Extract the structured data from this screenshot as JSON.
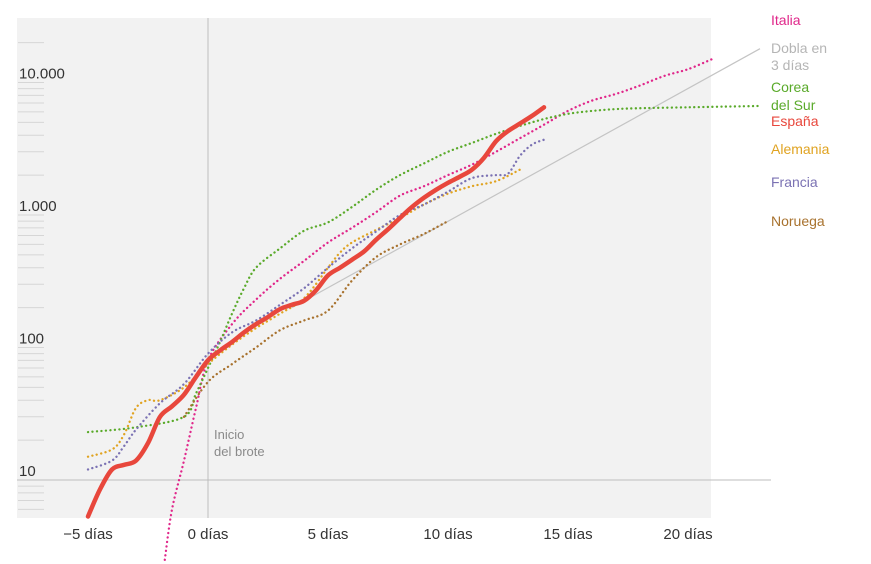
{
  "chart_data": {
    "type": "line",
    "title": "",
    "xlabel": "",
    "ylabel": "",
    "y_scale": "log",
    "xlim": [
      -7.5,
      21
    ],
    "ylim": [
      5.3,
      25000
    ],
    "grid": false,
    "legend_placement": "right",
    "x_ticks": [
      {
        "value": -5,
        "label": "−5 días"
      },
      {
        "value": 0,
        "label": "0 días"
      },
      {
        "value": 5,
        "label": "5 días"
      },
      {
        "value": 10,
        "label": "10 días"
      },
      {
        "value": 15,
        "label": "15 días"
      },
      {
        "value": 20,
        "label": "20 días"
      }
    ],
    "y_ticks": [
      {
        "value": 10,
        "label": "10"
      },
      {
        "value": 100,
        "label": "100"
      },
      {
        "value": 1000,
        "label": "1.000"
      },
      {
        "value": 10000,
        "label": "10.000"
      }
    ],
    "annotation": {
      "lines": [
        "Inicio",
        "del brote"
      ],
      "x": 0
    },
    "reference": {
      "name": "Dobla en 3 días",
      "label_lines": [
        "Dobla en",
        "3 días"
      ],
      "color": "#c4c4c4",
      "x": [
        3.5,
        23
      ],
      "y": [
        200,
        18000
      ]
    },
    "series": [
      {
        "name": "Italia",
        "label_lines": [
          "Italia"
        ],
        "color": "#e0278a",
        "style": "dotted",
        "x": [
          -1.8,
          -1.5,
          -1.0,
          -0.5,
          0,
          1,
          2,
          3,
          4,
          5,
          6,
          7,
          8,
          9,
          10,
          11,
          12,
          13,
          14,
          15,
          16,
          17,
          18,
          19,
          20,
          21
        ],
        "y": [
          2.5,
          6,
          14,
          35,
          80,
          150,
          230,
          330,
          450,
          620,
          800,
          1050,
          1400,
          1650,
          2000,
          2400,
          3000,
          3800,
          4800,
          6100,
          7300,
          8200,
          9500,
          11200,
          12600,
          15000
        ]
      },
      {
        "name": "Corea del Sur",
        "label_lines": [
          "Corea",
          "del Sur"
        ],
        "color": "#5aaa2a",
        "style": "dotted",
        "x": [
          -5,
          -3,
          -1,
          -0.5,
          0,
          0.5,
          1,
          1.5,
          2,
          3,
          4,
          5,
          6,
          7,
          8,
          9,
          10,
          11,
          12,
          13,
          14,
          15,
          16,
          17,
          18,
          20,
          22,
          23
        ],
        "y": [
          23,
          25,
          30,
          45,
          70,
          110,
          180,
          280,
          400,
          560,
          760,
          880,
          1150,
          1550,
          2000,
          2450,
          3000,
          3500,
          4100,
          4700,
          5300,
          5800,
          6100,
          6300,
          6400,
          6500,
          6600,
          6650
        ]
      },
      {
        "name": "España",
        "label_lines": [
          "España"
        ],
        "color": "#e8473c",
        "style": "solid",
        "x": [
          -5,
          -4.5,
          -4,
          -3.5,
          -3,
          -2.5,
          -2,
          -1.5,
          -1,
          -0.5,
          0,
          0.5,
          1,
          1.5,
          2,
          2.5,
          3,
          3.5,
          4,
          4.5,
          5,
          5.5,
          6,
          6.5,
          7,
          7.5,
          8,
          8.5,
          9,
          9.5,
          10,
          10.5,
          11,
          11.5,
          12,
          12.5,
          13,
          13.5,
          14
        ],
        "y": [
          5.3,
          8.5,
          12,
          13,
          14,
          19,
          30,
          36,
          44,
          60,
          80,
          95,
          110,
          130,
          150,
          170,
          195,
          210,
          225,
          270,
          350,
          400,
          460,
          530,
          650,
          780,
          950,
          1150,
          1350,
          1550,
          1750,
          1950,
          2200,
          2700,
          3600,
          4300,
          4900,
          5600,
          6500
        ]
      },
      {
        "name": "Alemania",
        "label_lines": [
          "Alemania"
        ],
        "color": "#e0a321",
        "style": "dotted",
        "x": [
          -5,
          -4,
          -3.5,
          -3,
          -2.5,
          -2,
          -1,
          0,
          1,
          2,
          3,
          4,
          5,
          5.5,
          6,
          7,
          8,
          9,
          10,
          11,
          12,
          13
        ],
        "y": [
          15,
          17,
          22,
          35,
          40,
          40,
          50,
          75,
          105,
          140,
          180,
          235,
          400,
          520,
          620,
          770,
          950,
          1200,
          1450,
          1650,
          1800,
          2200
        ]
      },
      {
        "name": "Francia",
        "label_lines": [
          "Francia"
        ],
        "color": "#7b72b3",
        "style": "dotted",
        "x": [
          -5,
          -4,
          -3.5,
          -3,
          -2,
          -1,
          0,
          1,
          2,
          3,
          4,
          5,
          6,
          7,
          8,
          9,
          10,
          11,
          12,
          12.5,
          13,
          13.5,
          14
        ],
        "y": [
          12,
          14,
          18,
          24,
          38,
          53,
          90,
          130,
          160,
          210,
          280,
          400,
          560,
          750,
          1000,
          1200,
          1500,
          1900,
          2000,
          2050,
          2800,
          3400,
          3700
        ]
      },
      {
        "name": "Noruega",
        "label_lines": [
          "Noruega"
        ],
        "color": "#a8722e",
        "style": "dotted",
        "x": [
          -1,
          0,
          1,
          2,
          3,
          4,
          5,
          6,
          7,
          8,
          9,
          10
        ],
        "y": [
          30,
          55,
          75,
          100,
          135,
          160,
          190,
          320,
          480,
          600,
          720,
          900
        ]
      }
    ]
  }
}
